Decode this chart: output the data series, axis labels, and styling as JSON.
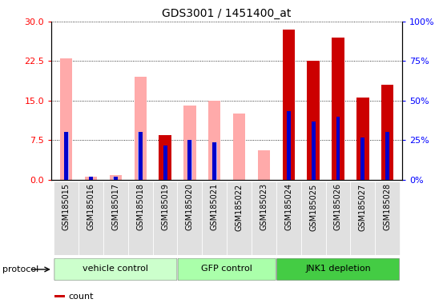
{
  "title": "GDS3001 / 1451400_at",
  "samples": [
    "GSM185015",
    "GSM185016",
    "GSM185017",
    "GSM185018",
    "GSM185019",
    "GSM185020",
    "GSM185021",
    "GSM185022",
    "GSM185023",
    "GSM185024",
    "GSM185025",
    "GSM185026",
    "GSM185027",
    "GSM185028"
  ],
  "count_values": [
    0,
    0,
    0,
    0,
    8.5,
    0,
    0,
    0,
    0,
    28.5,
    22.5,
    27,
    15.5,
    18
  ],
  "rank_values": [
    9,
    0.5,
    0.5,
    9,
    6.5,
    7.5,
    7,
    0,
    0,
    13,
    11,
    12,
    8,
    9
  ],
  "absent_value_bars": [
    23,
    0.5,
    0.8,
    19.5,
    8.5,
    14,
    15,
    12.5,
    5.5,
    0,
    12,
    0,
    0,
    0
  ],
  "absent_rank_bars": [
    9,
    0.5,
    0.5,
    9,
    0,
    7.5,
    7,
    0,
    0,
    0,
    0,
    0,
    0,
    0
  ],
  "groups": [
    {
      "name": "vehicle control",
      "start": 0,
      "end": 4,
      "color": "#ccffcc"
    },
    {
      "name": "GFP control",
      "start": 5,
      "end": 8,
      "color": "#aaffaa"
    },
    {
      "name": "JNK1 depletion",
      "start": 9,
      "end": 13,
      "color": "#44cc44"
    }
  ],
  "ylim_left": [
    0,
    30
  ],
  "ylim_right": [
    0,
    100
  ],
  "yticks_left": [
    0,
    7.5,
    15,
    22.5,
    30
  ],
  "yticks_right": [
    0,
    25,
    50,
    75,
    100
  ],
  "color_count": "#cc0000",
  "color_rank": "#0000cc",
  "color_absent_value": "#ffaaaa",
  "color_absent_rank": "#aaaaff",
  "bar_width": 0.5,
  "figsize": [
    5.58,
    3.84
  ],
  "dpi": 100
}
